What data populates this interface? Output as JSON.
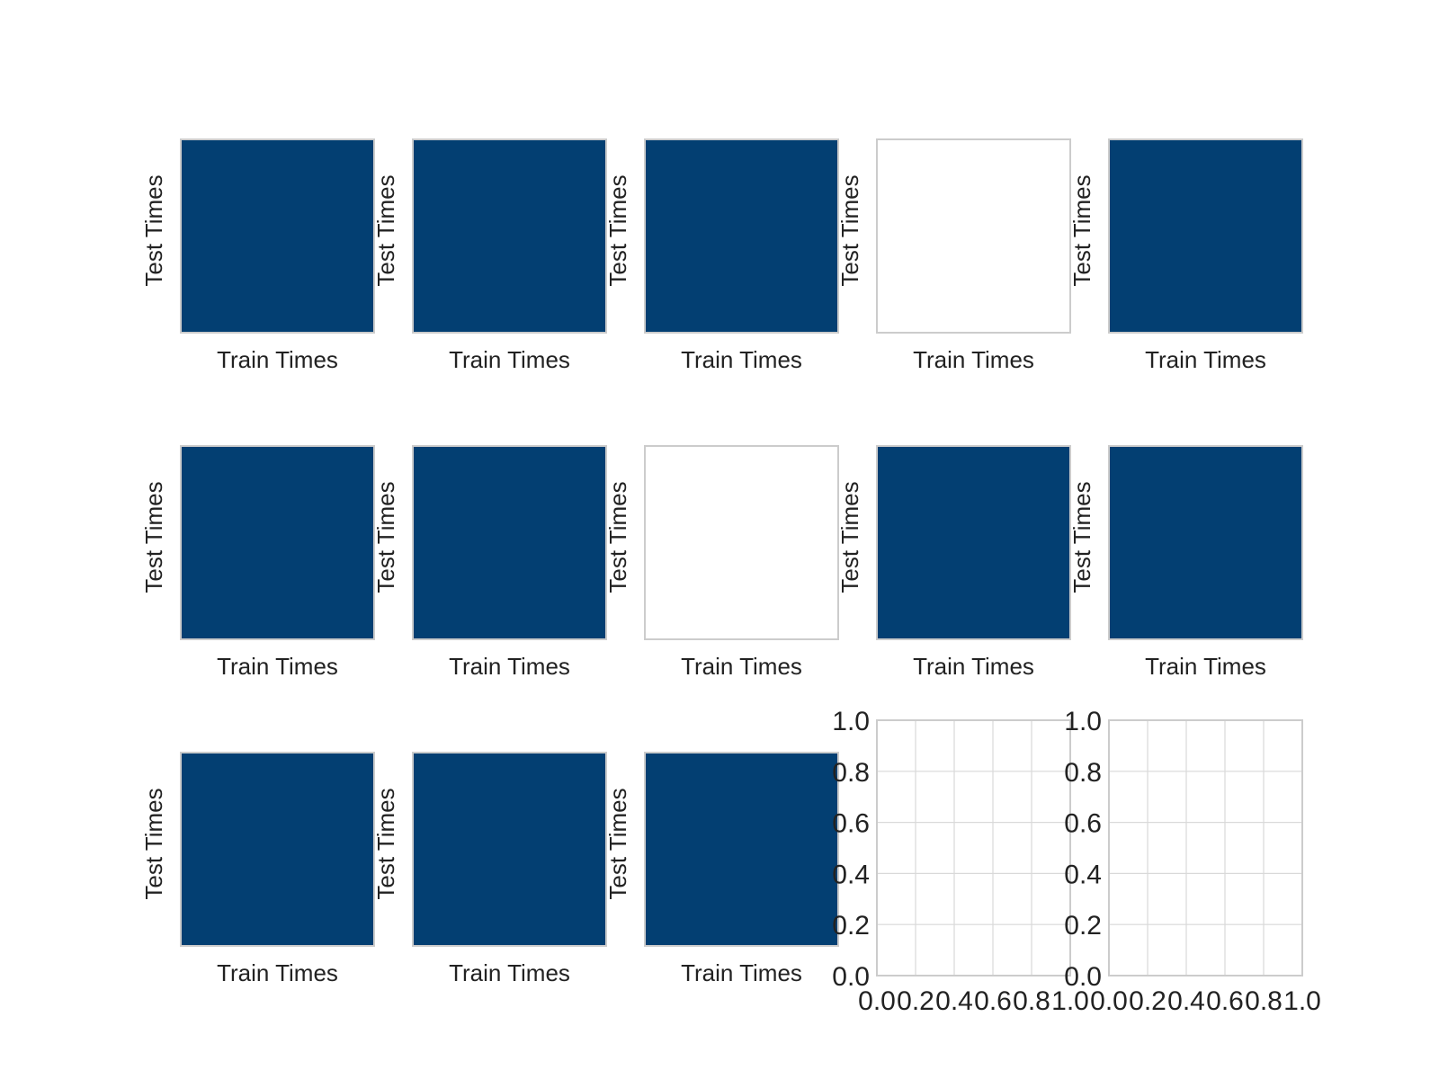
{
  "chart_data": {
    "type": "heatmap",
    "layout": {
      "rows": 3,
      "cols": 5
    },
    "colors": {
      "filled": "#033f72",
      "border": "#cccccc",
      "grid": "#d9d9d9",
      "text": "#222222"
    },
    "panels": [
      {
        "kind": "heatmap",
        "filled": true,
        "xlabel": "Train Times",
        "ylabel": "Test Times"
      },
      {
        "kind": "heatmap",
        "filled": true,
        "xlabel": "Train Times",
        "ylabel": "Test Times"
      },
      {
        "kind": "heatmap",
        "filled": true,
        "xlabel": "Train Times",
        "ylabel": "Test Times"
      },
      {
        "kind": "heatmap",
        "filled": false,
        "xlabel": "Train Times",
        "ylabel": "Test Times"
      },
      {
        "kind": "heatmap",
        "filled": true,
        "xlabel": "Train Times",
        "ylabel": "Test Times"
      },
      {
        "kind": "heatmap",
        "filled": true,
        "xlabel": "Train Times",
        "ylabel": "Test Times"
      },
      {
        "kind": "heatmap",
        "filled": true,
        "xlabel": "Train Times",
        "ylabel": "Test Times"
      },
      {
        "kind": "heatmap",
        "filled": false,
        "xlabel": "Train Times",
        "ylabel": "Test Times"
      },
      {
        "kind": "heatmap",
        "filled": true,
        "xlabel": "Train Times",
        "ylabel": "Test Times"
      },
      {
        "kind": "heatmap",
        "filled": true,
        "xlabel": "Train Times",
        "ylabel": "Test Times"
      },
      {
        "kind": "heatmap",
        "filled": true,
        "xlabel": "Train Times",
        "ylabel": "Test Times"
      },
      {
        "kind": "heatmap",
        "filled": true,
        "xlabel": "Train Times",
        "ylabel": "Test Times"
      },
      {
        "kind": "heatmap",
        "filled": true,
        "xlabel": "Train Times",
        "ylabel": "Test Times"
      },
      {
        "kind": "empty-axes",
        "xlim": [
          0,
          1
        ],
        "ylim": [
          0,
          1
        ],
        "xticks": [
          "0.0",
          "0.2",
          "0.4",
          "0.6",
          "0.8",
          "1.0"
        ],
        "yticks": [
          "0.0",
          "0.2",
          "0.4",
          "0.6",
          "0.8",
          "1.0"
        ],
        "grid": true
      },
      {
        "kind": "empty-axes",
        "xlim": [
          0,
          1
        ],
        "ylim": [
          0,
          1
        ],
        "xticks": [
          "0.0",
          "0.2",
          "0.4",
          "0.6",
          "0.8",
          "1.0"
        ],
        "yticks": [
          "0.0",
          "0.2",
          "0.4",
          "0.6",
          "0.8",
          "1.0"
        ],
        "grid": true
      }
    ]
  }
}
